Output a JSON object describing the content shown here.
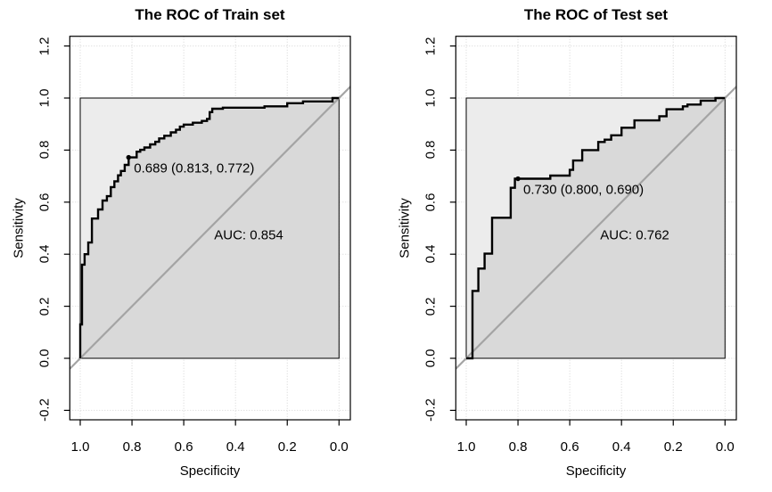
{
  "colors": {
    "background": "#ffffff",
    "curve": "#000000",
    "diagonal": "#a4a4a4",
    "area_under_curve": "#d9d9d9",
    "unit_square": "#ececec",
    "grid": "#d4d4d4",
    "text": "#000000",
    "box": "#000000"
  },
  "chart_data": [
    {
      "type": "line",
      "subtype": "roc-step-curve",
      "title": "The ROC of Train set",
      "xlabel": "Specificity",
      "ylabel": "Sensitivity",
      "auc": 0.854,
      "auc_label": "AUC: 0.854",
      "best_threshold": {
        "value": 0.689,
        "specificity": 0.813,
        "sensitivity": 0.772,
        "label": "0.689 (0.813, 0.772)"
      },
      "x_axis": {
        "ticks": [
          1.0,
          0.8,
          0.6,
          0.4,
          0.2,
          0.0
        ],
        "reversed": true
      },
      "y_axis": {
        "ticks": [
          -0.2,
          0.0,
          0.2,
          0.4,
          0.6,
          0.8,
          1.0,
          1.2
        ]
      },
      "grid": true,
      "diagonal_reference_line": true,
      "legend": null,
      "curve": [
        [
          1.0,
          0.0
        ],
        [
          1.0,
          0.13
        ],
        [
          0.993,
          0.13
        ],
        [
          0.993,
          0.36
        ],
        [
          0.983,
          0.36
        ],
        [
          0.983,
          0.4
        ],
        [
          0.969,
          0.4
        ],
        [
          0.969,
          0.445
        ],
        [
          0.955,
          0.445
        ],
        [
          0.955,
          0.537
        ],
        [
          0.931,
          0.537
        ],
        [
          0.931,
          0.572
        ],
        [
          0.914,
          0.572
        ],
        [
          0.914,
          0.606
        ],
        [
          0.897,
          0.606
        ],
        [
          0.897,
          0.623
        ],
        [
          0.882,
          0.623
        ],
        [
          0.882,
          0.658
        ],
        [
          0.868,
          0.658
        ],
        [
          0.868,
          0.68
        ],
        [
          0.854,
          0.68
        ],
        [
          0.854,
          0.703
        ],
        [
          0.843,
          0.703
        ],
        [
          0.843,
          0.72
        ],
        [
          0.828,
          0.72
        ],
        [
          0.828,
          0.743
        ],
        [
          0.813,
          0.743
        ],
        [
          0.813,
          0.772
        ],
        [
          0.782,
          0.772
        ],
        [
          0.782,
          0.794
        ],
        [
          0.768,
          0.794
        ],
        [
          0.768,
          0.801
        ],
        [
          0.752,
          0.801
        ],
        [
          0.752,
          0.81
        ],
        [
          0.73,
          0.81
        ],
        [
          0.73,
          0.822
        ],
        [
          0.71,
          0.822
        ],
        [
          0.71,
          0.832
        ],
        [
          0.695,
          0.832
        ],
        [
          0.695,
          0.845
        ],
        [
          0.675,
          0.845
        ],
        [
          0.675,
          0.855
        ],
        [
          0.65,
          0.855
        ],
        [
          0.65,
          0.868
        ],
        [
          0.63,
          0.868
        ],
        [
          0.63,
          0.878
        ],
        [
          0.615,
          0.878
        ],
        [
          0.615,
          0.89
        ],
        [
          0.6,
          0.89
        ],
        [
          0.6,
          0.898
        ],
        [
          0.565,
          0.898
        ],
        [
          0.565,
          0.905
        ],
        [
          0.53,
          0.905
        ],
        [
          0.53,
          0.912
        ],
        [
          0.51,
          0.912
        ],
        [
          0.51,
          0.92
        ],
        [
          0.5,
          0.92
        ],
        [
          0.5,
          0.946
        ],
        [
          0.49,
          0.946
        ],
        [
          0.49,
          0.959
        ],
        [
          0.449,
          0.959
        ],
        [
          0.449,
          0.963
        ],
        [
          0.288,
          0.963
        ],
        [
          0.288,
          0.968
        ],
        [
          0.2,
          0.968
        ],
        [
          0.2,
          0.98
        ],
        [
          0.139,
          0.98
        ],
        [
          0.139,
          0.987
        ],
        [
          0.025,
          0.987
        ],
        [
          0.025,
          1.0
        ],
        [
          0.0,
          1.0
        ]
      ]
    },
    {
      "type": "line",
      "subtype": "roc-step-curve",
      "title": "The ROC of Test set",
      "xlabel": "Specificity",
      "ylabel": "Sensitivity",
      "auc": 0.762,
      "auc_label": "AUC: 0.762",
      "best_threshold": {
        "value": 0.73,
        "specificity": 0.8,
        "sensitivity": 0.69,
        "label": "0.730 (0.800, 0.690)"
      },
      "x_axis": {
        "ticks": [
          1.0,
          0.8,
          0.6,
          0.4,
          0.2,
          0.0
        ],
        "reversed": true
      },
      "y_axis": {
        "ticks": [
          -0.2,
          0.0,
          0.2,
          0.4,
          0.6,
          0.8,
          1.0,
          1.2
        ]
      },
      "grid": true,
      "diagonal_reference_line": true,
      "legend": null,
      "curve": [
        [
          1.0,
          0.0
        ],
        [
          0.976,
          0.0
        ],
        [
          0.976,
          0.259
        ],
        [
          0.953,
          0.259
        ],
        [
          0.953,
          0.345
        ],
        [
          0.929,
          0.345
        ],
        [
          0.929,
          0.402
        ],
        [
          0.9,
          0.402
        ],
        [
          0.9,
          0.54
        ],
        [
          0.828,
          0.54
        ],
        [
          0.828,
          0.655
        ],
        [
          0.812,
          0.655
        ],
        [
          0.812,
          0.69
        ],
        [
          0.8,
          0.69
        ],
        [
          0.675,
          0.69
        ],
        [
          0.675,
          0.702
        ],
        [
          0.6,
          0.702
        ],
        [
          0.6,
          0.724
        ],
        [
          0.587,
          0.724
        ],
        [
          0.587,
          0.76
        ],
        [
          0.552,
          0.76
        ],
        [
          0.552,
          0.8
        ],
        [
          0.49,
          0.8
        ],
        [
          0.49,
          0.831
        ],
        [
          0.465,
          0.831
        ],
        [
          0.465,
          0.84
        ],
        [
          0.44,
          0.84
        ],
        [
          0.44,
          0.857
        ],
        [
          0.4,
          0.857
        ],
        [
          0.4,
          0.886
        ],
        [
          0.35,
          0.886
        ],
        [
          0.35,
          0.914
        ],
        [
          0.254,
          0.914
        ],
        [
          0.254,
          0.93
        ],
        [
          0.226,
          0.93
        ],
        [
          0.226,
          0.957
        ],
        [
          0.163,
          0.957
        ],
        [
          0.163,
          0.968
        ],
        [
          0.145,
          0.968
        ],
        [
          0.145,
          0.975
        ],
        [
          0.094,
          0.975
        ],
        [
          0.094,
          0.99
        ],
        [
          0.037,
          0.99
        ],
        [
          0.037,
          1.0
        ],
        [
          0.0,
          1.0
        ]
      ]
    }
  ]
}
